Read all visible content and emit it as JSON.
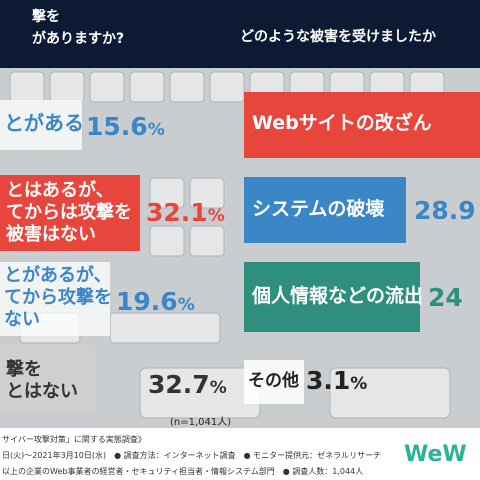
{
  "header": {
    "left_line1": "撃を",
    "left_line2": "がありますか?",
    "right_title": "どのような被害を受けましたか"
  },
  "left_labels": [
    "とがある",
    "とはあるが、",
    "てからは攻撃を",
    "被害はない",
    "とがあるが、",
    "てから攻撃を",
    "ない",
    "撃を",
    "とはない"
  ],
  "sample_note": "(n=1,041人)",
  "footer": {
    "line1": "サイバー攻撃対策」に関する実態調査》",
    "line2": "日(火)～2021年3月10日(水)　● 調査方法：インターネット調査　● モニター提供元：ゼネラルリサーチ",
    "line3": "以上の企業のWeb事業者の経営者・セキュリティ担当者・情報システム部門　● 調査人数：1,044人",
    "logo": "WeW"
  },
  "colors": {
    "header_bg": "#0d1a33",
    "red": "#e8453c",
    "blue": "#3b86c6",
    "teal": "#2e8f7e",
    "gray": "#cfcfcf",
    "logo": "#2bb39a"
  },
  "chart_data": [
    {
      "type": "bar",
      "categories": [
        "ことがある",
        "ことはあるが、…からは攻撃を…被害はない",
        "ことがあるが、…から攻撃を…ない",
        "…撃を…ことはない"
      ],
      "values": [
        15.6,
        32.1,
        19.6,
        32.7
      ],
      "value_labels": [
        {
          "num": "15.6",
          "pct": "%"
        },
        {
          "num": "32.1",
          "pct": "%"
        },
        {
          "num": "19.6",
          "pct": "%"
        },
        {
          "num": "32.7",
          "pct": "%"
        }
      ],
      "unit": "%"
    },
    {
      "type": "bar",
      "categories": [
        "Webサイトの改ざん",
        "システムの破壊",
        "個人情報などの流出",
        "その他"
      ],
      "values": [
        null,
        28.9,
        24,
        3.1
      ],
      "value_labels": [
        {
          "num": "",
          "pct": ""
        },
        {
          "num": "28.9",
          "pct": ""
        },
        {
          "num": "24",
          "pct": ""
        },
        {
          "num": "3.1",
          "pct": "%"
        }
      ],
      "unit": "%"
    }
  ]
}
